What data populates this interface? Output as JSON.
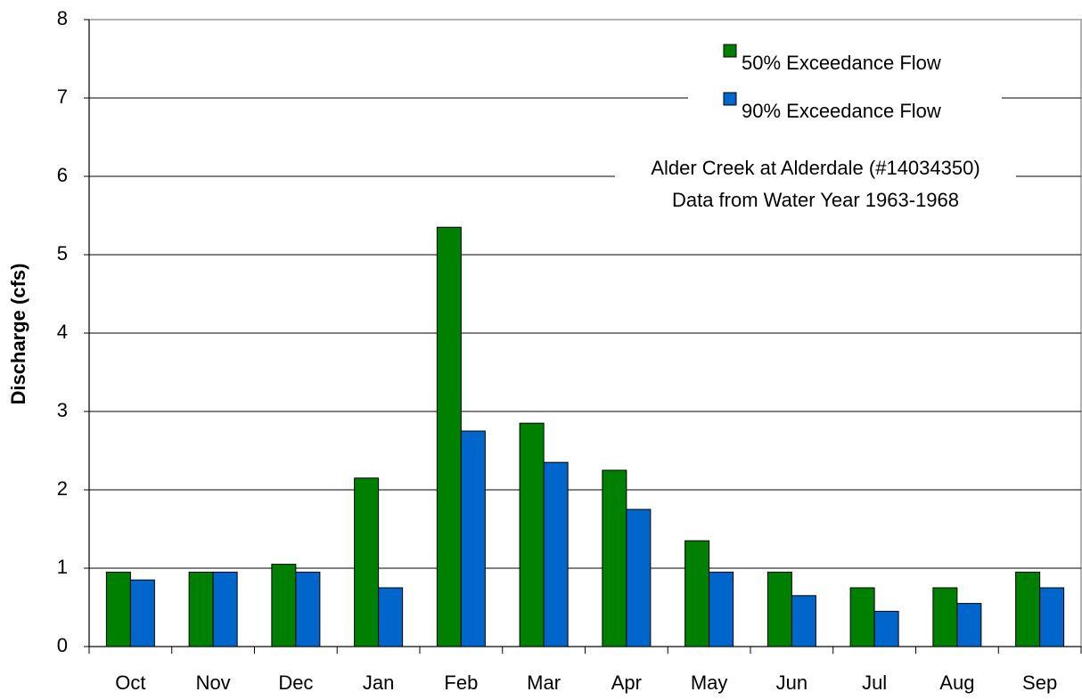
{
  "chart_data": {
    "type": "bar",
    "ylabel": "Discharge (cfs)",
    "annotation": [
      "Alder Creek at Alderdale (#14034350)",
      "Data from Water Year 1963-1968"
    ],
    "categories": [
      "Oct",
      "Nov",
      "Dec",
      "Jan",
      "Feb",
      "Mar",
      "Apr",
      "May",
      "Jun",
      "Jul",
      "Aug",
      "Sep"
    ],
    "series": [
      {
        "name": "50% Exceedance Flow",
        "color": "#008000",
        "values": [
          0.95,
          0.95,
          1.05,
          2.15,
          5.35,
          2.85,
          2.25,
          1.35,
          0.95,
          0.75,
          0.75,
          0.95
        ]
      },
      {
        "name": "90% Exceedance Flow",
        "color": "#0066cc",
        "values": [
          0.85,
          0.95,
          0.95,
          0.75,
          2.75,
          2.35,
          1.75,
          0.95,
          0.65,
          0.45,
          0.55,
          0.75
        ]
      }
    ],
    "ylim": [
      0,
      8
    ],
    "yticks": [
      0,
      1,
      2,
      3,
      4,
      5,
      6,
      7,
      8
    ],
    "grid": true,
    "legend": "upper right"
  }
}
